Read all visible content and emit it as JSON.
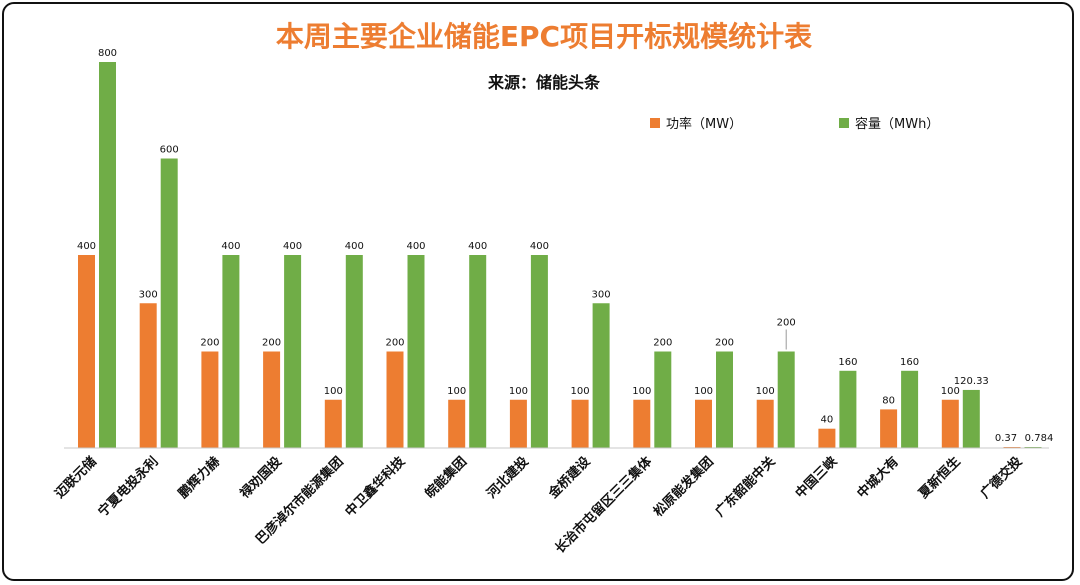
{
  "chart_data": {
    "type": "bar",
    "title": "本周主要企业储能EPC项目开标规模统计表",
    "subtitle": "来源：储能头条",
    "categories": [
      "迈联元储",
      "宁夏电投永利",
      "鹏辉力赫",
      "禄劝国投",
      "巴彦淖尔市能源集团",
      "中卫鑫华科技",
      "皖能集团",
      "河北建投",
      "金桥建设",
      "长治市屯留区三三集体",
      "松原能发集团",
      "广东韶能中关",
      "中国三峡",
      "中城大有",
      "夏新恒生",
      "广德交投"
    ],
    "series": [
      {
        "name": "功率（MW）",
        "color": "#ED7D31",
        "values": [
          400,
          300,
          200,
          200,
          100,
          200,
          100,
          100,
          100,
          100,
          100,
          100,
          40,
          80,
          100,
          0.37
        ]
      },
      {
        "name": "容量（MWh）",
        "color": "#70AD47",
        "values": [
          800,
          600,
          400,
          400,
          400,
          400,
          400,
          400,
          300,
          200,
          200,
          200,
          160,
          160,
          120.33,
          0.784
        ]
      }
    ],
    "data_labels": [
      [
        "400",
        "300",
        "200",
        "200",
        "100",
        "200",
        "100",
        "100",
        "100",
        "100",
        "100",
        "100",
        "40",
        "80",
        "100",
        "0.37"
      ],
      [
        "800",
        "600",
        "400",
        "400",
        "400",
        "400",
        "400",
        "400",
        "300",
        "200",
        "200",
        "200",
        "160",
        "160",
        "120.33",
        "0.784"
      ]
    ],
    "ylim": [
      0,
      800
    ],
    "grid": false,
    "legend_position": "top-right",
    "title_color": "#ED7D31",
    "axis_color": "#C8C8C8"
  }
}
